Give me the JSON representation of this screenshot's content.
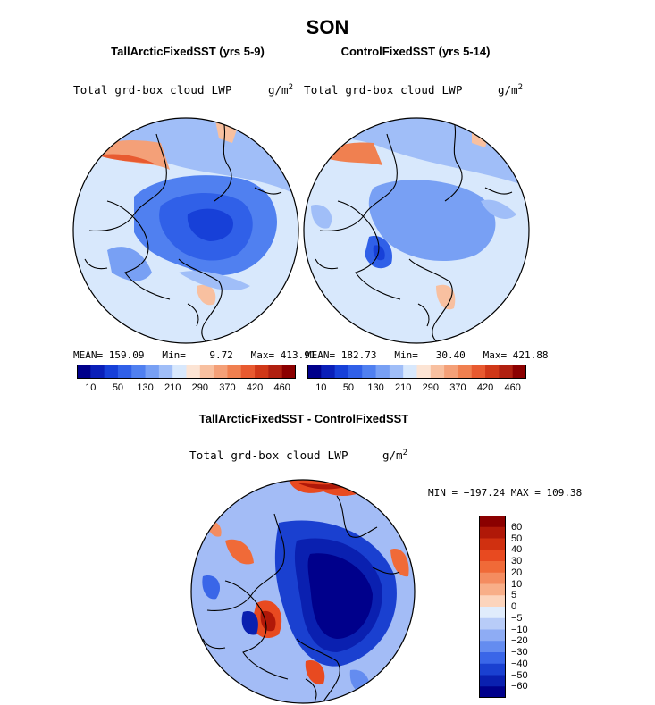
{
  "figure": {
    "title": "SON"
  },
  "panels": [
    {
      "title": "TallArcticFixedSST (yrs 5-9)",
      "variable": "Total grd-box cloud LWP",
      "unit": "g/m",
      "unit_sup": "2",
      "stats": "MEAN= 159.09   Min=    9.72   Max= 413.91"
    },
    {
      "title": "ControlFixedSST (yrs 5-14)",
      "variable": "Total grd-box cloud LWP",
      "unit": "g/m",
      "unit_sup": "2",
      "stats": "MEAN= 182.73   Min=   30.40   Max= 421.88"
    }
  ],
  "top_colorbar": {
    "tick_labels": [
      "10",
      "50",
      "130",
      "210",
      "290",
      "370",
      "420",
      "460"
    ],
    "colors": [
      "#00008b",
      "#0a1fb8",
      "#1740d8",
      "#3060e8",
      "#5080f0",
      "#78a0f4",
      "#a0bef8",
      "#d8e8fc",
      "#fce4d4",
      "#f8c0a0",
      "#f4a078",
      "#f08050",
      "#e85a30",
      "#d03818",
      "#b02010",
      "#8b0000"
    ]
  },
  "difference_panel": {
    "title": "TallArcticFixedSST - ControlFixedSST",
    "variable": "Total grd-box cloud LWP",
    "unit": "g/m",
    "unit_sup": "2",
    "stats": "MIN = −197.24 MAX = 109.38",
    "colorbar": {
      "tick_labels": [
        "60",
        "50",
        "40",
        "30",
        "20",
        "10",
        "5",
        "0",
        "−5",
        "−10",
        "−20",
        "−30",
        "−40",
        "−50",
        "−60"
      ],
      "colors": [
        "#8b0000",
        "#b01808",
        "#d03010",
        "#e84a20",
        "#f06a38",
        "#f48c60",
        "#f8ae88",
        "#fcd4bc",
        "#e0ecfc",
        "#b8ccf8",
        "#8eacf4",
        "#648cf0",
        "#3a66e8",
        "#1a40d0",
        "#0a20b0",
        "#00008b"
      ]
    }
  }
}
